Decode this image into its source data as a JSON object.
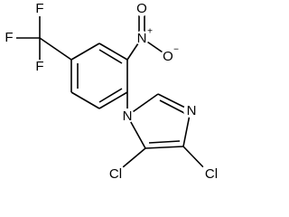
{
  "atoms": {
    "f_top": "F",
    "f_left": "F",
    "f_bottom": "F",
    "nitro_n": "N",
    "nitro_n_charge": "+",
    "nitro_o_double": "O",
    "nitro_o_single": "O",
    "nitro_o_charge": "−",
    "imidazole_n1": "N",
    "imidazole_n3": "N",
    "cl_5": "Cl",
    "cl_4": "Cl"
  }
}
